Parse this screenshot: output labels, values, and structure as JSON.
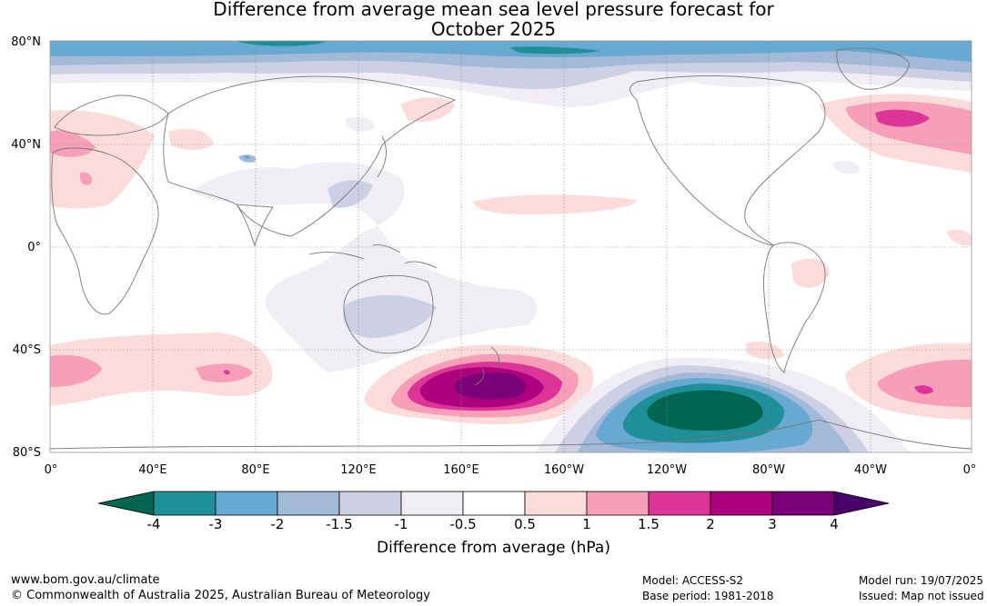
{
  "title_line1": "Difference from average mean sea level pressure forecast for",
  "title_line2": "October 2025",
  "lat_labels": [
    "80°N",
    "40°N",
    "0°",
    "40°S",
    "80°S"
  ],
  "lon_labels": [
    "0°",
    "40°E",
    "80°E",
    "120°E",
    "160°E",
    "160°W",
    "120°W",
    "80°W",
    "40°W",
    "0°"
  ],
  "legend": {
    "title": "Difference from average (hPa)",
    "ticks": [
      "-4",
      "-3",
      "-2",
      "-1.5",
      "-1",
      "-0.5",
      "0.5",
      "1",
      "1.5",
      "2",
      "3",
      "4"
    ],
    "colors": {
      "below_min": "#006651",
      "n3_to_n4": "#1f8f99",
      "n2_to_n3": "#68a9d1",
      "n1_5_to_n2": "#a3b9d8",
      "n1_to_n1_5": "#cdd0e5",
      "n0_5_to_n1": "#f1edf4",
      "neutral": "#ffffff",
      "p0_5_to_p1": "#fcdcdb",
      "p1_to_p1_5": "#f79fb8",
      "p1_5_to_p2": "#dd3497",
      "p2_to_p3": "#ae017e",
      "p3_to_p4": "#7a0177",
      "above_max": "#49006a"
    }
  },
  "footer": {
    "website": "www.bom.gov.au/climate",
    "copyright": "© Commonwealth of Australia 2025, Australian Bureau of Meteorology",
    "model": "Model: ACCESS-S2",
    "base_period": "Base period: 1981-2018",
    "model_run": "Model run: 19/07/2025",
    "issued": "Issued: Map not issued"
  }
}
